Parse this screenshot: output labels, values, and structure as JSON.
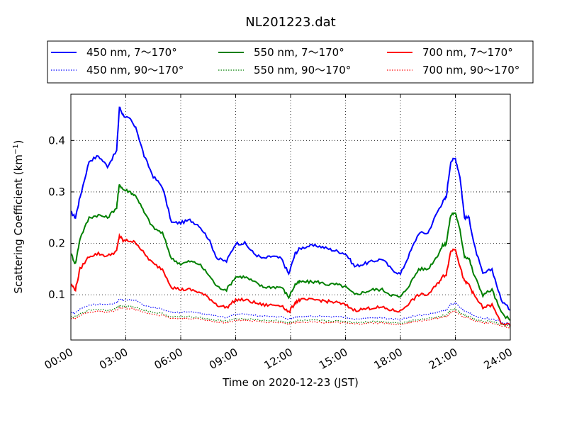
{
  "chart_data": {
    "type": "line",
    "title": "NL201223.dat",
    "xlabel": "Time on 2020-12-23 (JST)",
    "ylabel": "Scattering Coefficient (km",
    "ylabel_sup": "−1",
    "ylabel_close": ")",
    "xlim": [
      "00:00",
      "24:00"
    ],
    "ylim": [
      0.012,
      0.49
    ],
    "x_ticks": [
      "00:00",
      "03:00",
      "06:00",
      "09:00",
      "12:00",
      "15:00",
      "18:00",
      "21:00",
      "24:00"
    ],
    "y_ticks": [
      "0.1",
      "0.2",
      "0.3",
      "0.4"
    ],
    "grid": true,
    "grid_style": "dotted",
    "legend_position": "top, above plot",
    "x": [
      0,
      0.25,
      0.5,
      1,
      1.5,
      2,
      2.5,
      2.65,
      2.85,
      3.25,
      3.6,
      4,
      4.5,
      5,
      5.5,
      6,
      6.5,
      7,
      7.5,
      8,
      8.5,
      9,
      9.5,
      10,
      10.5,
      11,
      11.5,
      11.9,
      12.25,
      12.5,
      13,
      13.5,
      14,
      14.5,
      15,
      15.5,
      16,
      16.5,
      17,
      17.5,
      18,
      18.5,
      19,
      19.5,
      20,
      20.3,
      20.5,
      20.75,
      21,
      21.25,
      21.5,
      21.75,
      22,
      22.5,
      23,
      23.5,
      24
    ],
    "series": [
      {
        "name": "450 nm, 7～170°",
        "color": "#0000ff",
        "style": "solid",
        "values": [
          0.26,
          0.25,
          0.29,
          0.36,
          0.37,
          0.35,
          0.38,
          0.465,
          0.45,
          0.44,
          0.42,
          0.37,
          0.33,
          0.31,
          0.24,
          0.24,
          0.245,
          0.235,
          0.21,
          0.17,
          0.165,
          0.2,
          0.2,
          0.18,
          0.17,
          0.175,
          0.17,
          0.14,
          0.18,
          0.19,
          0.195,
          0.195,
          0.19,
          0.185,
          0.18,
          0.155,
          0.16,
          0.165,
          0.17,
          0.15,
          0.14,
          0.18,
          0.22,
          0.22,
          0.26,
          0.28,
          0.29,
          0.36,
          0.365,
          0.33,
          0.25,
          0.25,
          0.2,
          0.14,
          0.15,
          0.09,
          0.07
        ]
      },
      {
        "name": "550 nm, 7～170°",
        "color": "#008000",
        "style": "solid",
        "values": [
          0.18,
          0.16,
          0.21,
          0.25,
          0.255,
          0.25,
          0.27,
          0.315,
          0.305,
          0.3,
          0.29,
          0.26,
          0.23,
          0.22,
          0.17,
          0.16,
          0.165,
          0.16,
          0.14,
          0.115,
          0.11,
          0.135,
          0.135,
          0.125,
          0.115,
          0.115,
          0.115,
          0.095,
          0.12,
          0.125,
          0.125,
          0.125,
          0.12,
          0.12,
          0.115,
          0.1,
          0.105,
          0.11,
          0.11,
          0.1,
          0.095,
          0.12,
          0.15,
          0.15,
          0.175,
          0.195,
          0.2,
          0.255,
          0.26,
          0.225,
          0.175,
          0.17,
          0.14,
          0.1,
          0.11,
          0.065,
          0.05
        ]
      },
      {
        "name": "700 nm, 7～170°",
        "color": "#ff0000",
        "style": "solid",
        "values": [
          0.12,
          0.11,
          0.15,
          0.175,
          0.18,
          0.175,
          0.185,
          0.215,
          0.205,
          0.205,
          0.2,
          0.18,
          0.16,
          0.15,
          0.115,
          0.11,
          0.11,
          0.105,
          0.095,
          0.08,
          0.075,
          0.09,
          0.09,
          0.085,
          0.08,
          0.08,
          0.08,
          0.065,
          0.085,
          0.09,
          0.09,
          0.09,
          0.087,
          0.085,
          0.08,
          0.07,
          0.072,
          0.075,
          0.075,
          0.07,
          0.068,
          0.085,
          0.1,
          0.1,
          0.12,
          0.135,
          0.14,
          0.185,
          0.19,
          0.155,
          0.125,
          0.12,
          0.1,
          0.075,
          0.08,
          0.045,
          0.04
        ]
      },
      {
        "name": "450 nm, 90～170°",
        "color": "#0000ff",
        "style": "dotted",
        "values": [
          0.065,
          0.065,
          0.072,
          0.08,
          0.082,
          0.08,
          0.085,
          0.092,
          0.09,
          0.09,
          0.088,
          0.08,
          0.075,
          0.072,
          0.066,
          0.066,
          0.066,
          0.065,
          0.062,
          0.058,
          0.056,
          0.062,
          0.062,
          0.06,
          0.058,
          0.058,
          0.057,
          0.052,
          0.056,
          0.058,
          0.058,
          0.058,
          0.057,
          0.057,
          0.056,
          0.053,
          0.054,
          0.055,
          0.055,
          0.053,
          0.052,
          0.057,
          0.06,
          0.062,
          0.066,
          0.068,
          0.07,
          0.082,
          0.084,
          0.075,
          0.068,
          0.066,
          0.06,
          0.054,
          0.054,
          0.047,
          0.042
        ]
      },
      {
        "name": "550 nm, 90～170°",
        "color": "#008000",
        "style": "dotted",
        "values": [
          0.057,
          0.057,
          0.063,
          0.07,
          0.072,
          0.07,
          0.074,
          0.079,
          0.078,
          0.077,
          0.075,
          0.07,
          0.066,
          0.063,
          0.057,
          0.057,
          0.057,
          0.056,
          0.053,
          0.05,
          0.049,
          0.053,
          0.053,
          0.052,
          0.05,
          0.05,
          0.049,
          0.045,
          0.049,
          0.05,
          0.05,
          0.05,
          0.049,
          0.049,
          0.048,
          0.046,
          0.047,
          0.048,
          0.048,
          0.046,
          0.045,
          0.049,
          0.052,
          0.054,
          0.057,
          0.059,
          0.06,
          0.07,
          0.072,
          0.065,
          0.06,
          0.058,
          0.053,
          0.048,
          0.048,
          0.042,
          0.038
        ]
      },
      {
        "name": "700 nm, 90～170°",
        "color": "#ff0000",
        "style": "dotted",
        "values": [
          0.054,
          0.054,
          0.06,
          0.066,
          0.068,
          0.066,
          0.07,
          0.075,
          0.074,
          0.073,
          0.071,
          0.066,
          0.062,
          0.06,
          0.054,
          0.054,
          0.054,
          0.053,
          0.05,
          0.047,
          0.046,
          0.05,
          0.05,
          0.049,
          0.047,
          0.047,
          0.046,
          0.043,
          0.046,
          0.047,
          0.047,
          0.047,
          0.046,
          0.046,
          0.045,
          0.043,
          0.044,
          0.045,
          0.045,
          0.043,
          0.042,
          0.046,
          0.049,
          0.051,
          0.054,
          0.056,
          0.057,
          0.066,
          0.068,
          0.061,
          0.056,
          0.054,
          0.05,
          0.045,
          0.045,
          0.04,
          0.036
        ]
      }
    ]
  }
}
